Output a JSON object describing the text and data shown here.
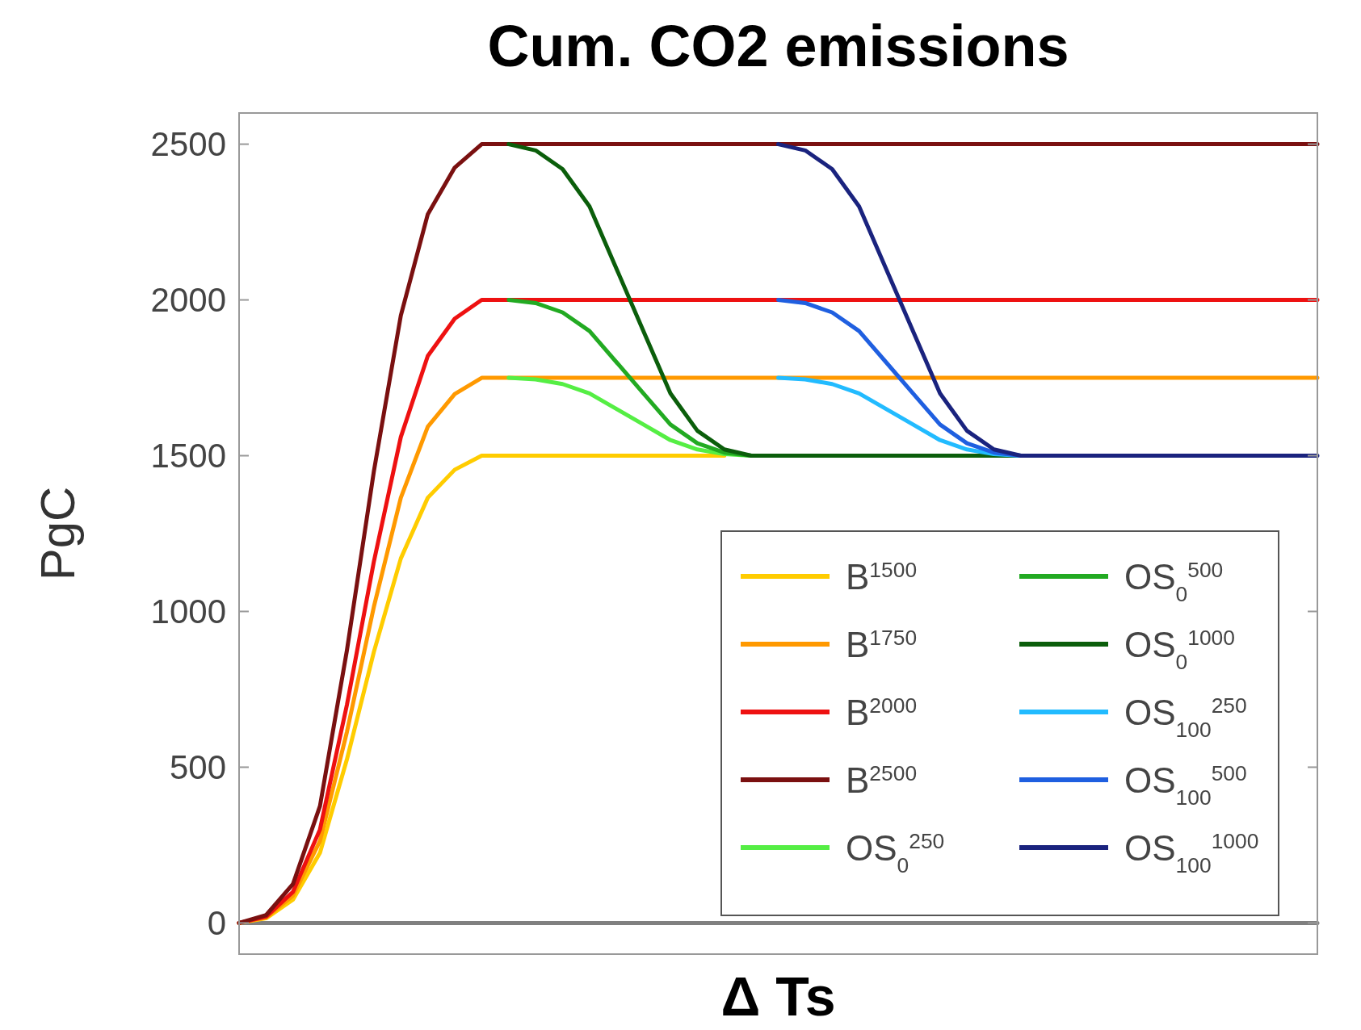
{
  "chart_data": {
    "type": "line",
    "title": "Cum. CO2 emissions",
    "xlabel": "Δ Ts",
    "ylabel": "PgC",
    "categories": [
      null,
      null,
      null,
      null,
      null,
      null,
      null,
      null,
      null,
      null,
      null,
      null,
      null,
      null,
      null,
      null,
      null,
      null,
      null,
      null,
      null,
      null,
      null,
      null,
      null,
      null,
      null,
      null,
      null,
      null,
      null,
      null,
      null,
      null,
      null,
      null,
      null,
      null,
      null,
      null,
      null
    ],
    "ylim": [
      -100,
      2600
    ],
    "yticks": [
      0,
      500,
      1000,
      1500,
      2000,
      2500
    ],
    "tick_labels": "y",
    "grid": false,
    "legend": "bottom right",
    "marker": "none",
    "line_style": "solid",
    "series": [
      {
        "color": "#808080",
        "values": [
          0,
          0,
          0,
          0,
          0,
          0,
          0,
          0,
          0,
          0,
          0,
          0,
          0,
          0,
          0,
          0,
          0,
          0,
          0,
          0,
          0,
          0,
          0,
          0,
          0,
          0,
          0,
          0,
          0,
          0,
          0,
          0,
          0,
          0,
          0,
          0,
          0,
          0,
          0,
          0,
          0
        ]
      },
      {
        "name": "B$^{1500}$",
        "color": "#ffcc00",
        "values": [
          0,
          15,
          75,
          225,
          525,
          870,
          1170,
          1365,
          1455,
          1500,
          1500,
          1500,
          1500,
          1500,
          1500,
          1500,
          1500,
          1500,
          1500,
          null,
          null,
          null,
          null,
          null,
          null,
          null,
          null,
          null,
          null,
          null,
          null,
          null,
          null,
          null,
          null,
          null,
          null,
          null,
          null,
          null,
          null
        ]
      },
      {
        "name": "B$^{1750}$",
        "color": "#ff9900",
        "values": [
          0,
          18,
          88,
          263,
          613,
          1015,
          1365,
          1593,
          1698,
          1750,
          1750,
          1750,
          1750,
          1750,
          1750,
          1750,
          1750,
          1750,
          1750,
          1750,
          1750,
          1750,
          1750,
          1750,
          1750,
          1750,
          1750,
          1750,
          1750,
          1750,
          1750,
          1750,
          1750,
          1750,
          1750,
          1750,
          1750,
          1750,
          1750,
          1750,
          1750
        ]
      },
      {
        "name": "B$^{2000}$",
        "color": "#ee1111",
        "values": [
          0,
          20,
          100,
          300,
          700,
          1160,
          1560,
          1820,
          1940,
          2000,
          2000,
          2000,
          2000,
          2000,
          2000,
          2000,
          2000,
          2000,
          2000,
          2000,
          2000,
          2000,
          2000,
          2000,
          2000,
          2000,
          2000,
          2000,
          2000,
          2000,
          2000,
          2000,
          2000,
          2000,
          2000,
          2000,
          2000,
          2000,
          2000,
          2000,
          2000
        ]
      },
      {
        "name": "B$^{2500}$",
        "color": "#7a1010",
        "values": [
          0,
          25,
          125,
          375,
          875,
          1450,
          1950,
          2275,
          2425,
          2500,
          2500,
          2500,
          2500,
          2500,
          2500,
          2500,
          2500,
          2500,
          2500,
          2500,
          2500,
          2500,
          2500,
          2500,
          2500,
          2500,
          2500,
          2500,
          2500,
          2500,
          2500,
          2500,
          2500,
          2500,
          2500,
          2500,
          2500,
          2500,
          2500,
          2500,
          2500
        ]
      },
      {
        "name": "OS$_{0}$$^{250}$",
        "color": "#55ee44",
        "values": [
          null,
          null,
          null,
          null,
          null,
          null,
          null,
          null,
          null,
          null,
          1750,
          1745,
          1730,
          1700,
          1650,
          1600,
          1550,
          1520,
          1505,
          1500,
          null,
          null,
          null,
          null,
          null,
          null,
          null,
          null,
          null,
          null,
          null,
          null,
          null,
          null,
          null,
          null,
          null,
          null,
          null,
          null,
          null
        ]
      },
      {
        "name": "OS$_{0}$$^{500}$",
        "color": "#22aa22",
        "values": [
          null,
          null,
          null,
          null,
          null,
          null,
          null,
          null,
          null,
          null,
          2000,
          1990,
          1960,
          1900,
          1800,
          1700,
          1600,
          1540,
          1510,
          1500,
          null,
          null,
          null,
          null,
          null,
          null,
          null,
          null,
          null,
          null,
          null,
          null,
          null,
          null,
          null,
          null,
          null,
          null,
          null,
          null,
          null
        ]
      },
      {
        "name": "OS$_{0}$$^{1000}$",
        "color": "#0b5e0b",
        "values": [
          null,
          null,
          null,
          null,
          null,
          null,
          null,
          null,
          null,
          null,
          2500,
          2480,
          2420,
          2300,
          2100,
          1900,
          1700,
          1580,
          1520,
          1500,
          1500,
          1500,
          1500,
          1500,
          1500,
          1500,
          1500,
          1500,
          1500,
          1500,
          null,
          null,
          null,
          null,
          null,
          null,
          null,
          null,
          null,
          null,
          null
        ]
      },
      {
        "name": "OS$_{100}$$^{250}$",
        "color": "#22bbff",
        "values": [
          null,
          null,
          null,
          null,
          null,
          null,
          null,
          null,
          null,
          null,
          null,
          null,
          null,
          null,
          null,
          null,
          null,
          null,
          null,
          null,
          1750,
          1745,
          1730,
          1700,
          1650,
          1600,
          1550,
          1520,
          1505,
          1500,
          null,
          null,
          null,
          null,
          null,
          null,
          null,
          null,
          null,
          null,
          null
        ]
      },
      {
        "name": "OS$_{100}$$^{500}$",
        "color": "#1f5fe0",
        "values": [
          null,
          null,
          null,
          null,
          null,
          null,
          null,
          null,
          null,
          null,
          null,
          null,
          null,
          null,
          null,
          null,
          null,
          null,
          null,
          null,
          2000,
          1990,
          1960,
          1900,
          1800,
          1700,
          1600,
          1540,
          1510,
          1500,
          null,
          null,
          null,
          null,
          null,
          null,
          null,
          null,
          null,
          null,
          null
        ]
      },
      {
        "name": "OS$_{100}$$^{1000}$",
        "color": "#1a237e",
        "values": [
          null,
          null,
          null,
          null,
          null,
          null,
          null,
          null,
          null,
          null,
          null,
          null,
          null,
          null,
          null,
          null,
          null,
          null,
          null,
          null,
          2500,
          2480,
          2420,
          2300,
          2100,
          1900,
          1700,
          1580,
          1520,
          1500,
          1500,
          1500,
          1500,
          1500,
          1500,
          1500,
          1500,
          1500,
          1500,
          1500,
          1500
        ]
      }
    ]
  }
}
